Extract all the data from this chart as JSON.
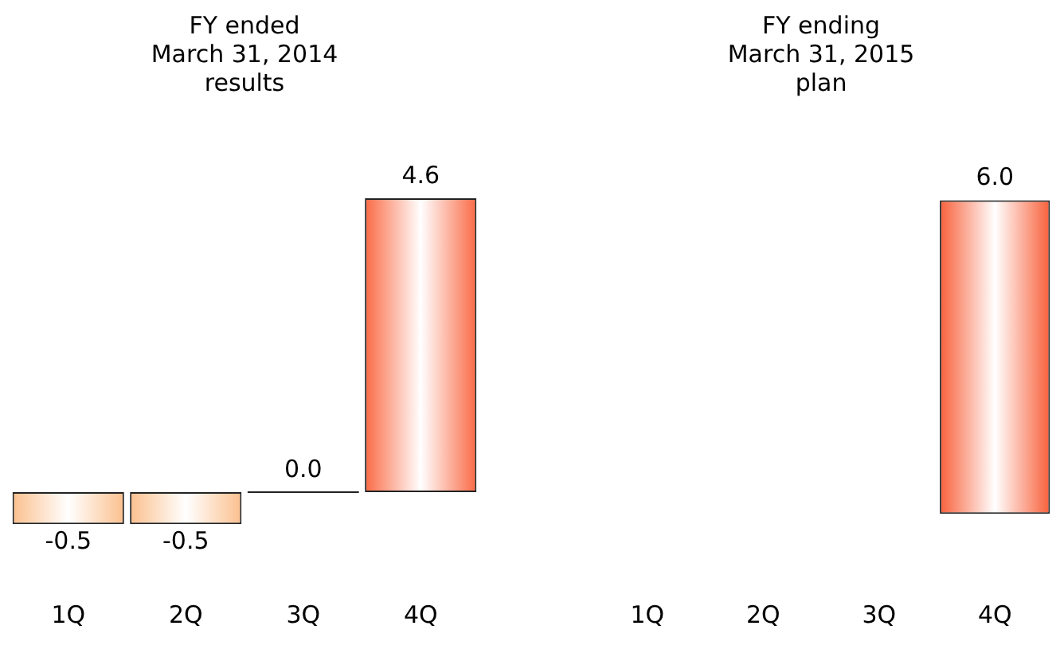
{
  "chart_data": [
    {
      "type": "bar",
      "title": "FY ended\nMarch 31, 2014\nresults",
      "categories": [
        "1Q",
        "2Q",
        "3Q",
        "4Q"
      ],
      "values": [
        -0.5,
        -0.5,
        0.0,
        4.6
      ],
      "value_labels": [
        "-0.5",
        "-0.5",
        "0.0",
        "4.6"
      ],
      "colors": [
        "#fbc08e",
        "#fbc08e",
        "#222222",
        "#fa6a45"
      ],
      "grid": false,
      "legend": false
    },
    {
      "type": "bar",
      "title": "FY ending\nMarch 31, 2015\nplan",
      "categories": [
        "1Q",
        "2Q",
        "3Q",
        "4Q"
      ],
      "values": [
        null,
        null,
        null,
        6.0
      ],
      "value_labels": [
        null,
        null,
        null,
        "6.0"
      ],
      "colors": [
        "#f8603a",
        "#f8603a",
        "#f8603a",
        "#f8603a"
      ],
      "grid": false,
      "legend": false
    }
  ]
}
